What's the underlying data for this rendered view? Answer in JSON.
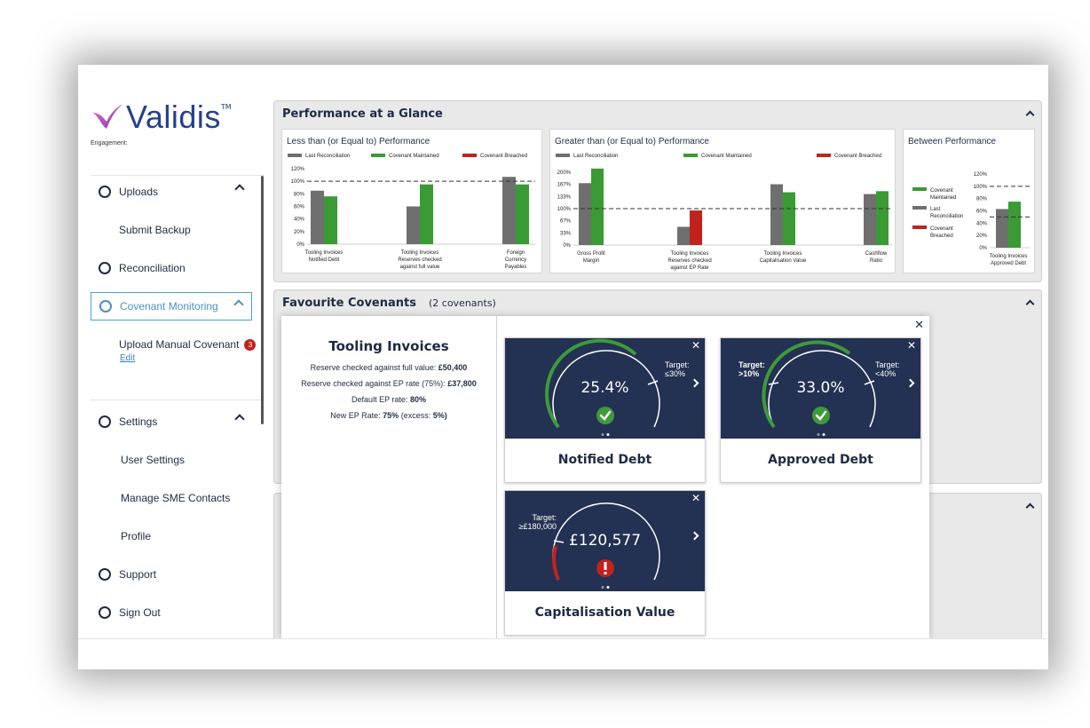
{
  "brand": {
    "name": "Validis",
    "tm": "TM"
  },
  "engagement_label": "Engagement:",
  "sidebar": {
    "uploads": "Uploads",
    "submit_backup": "Submit Backup",
    "reconciliation": "Reconciliation",
    "covenant_monitoring": "Covenant Monitoring",
    "upload_manual_covenant": "Upload Manual Covenant",
    "upload_badge": "3",
    "edit": "Edit",
    "settings": "Settings",
    "user_settings": "User Settings",
    "manage_sme_contacts": "Manage SME Contacts",
    "profile": "Profile",
    "support": "Support",
    "sign_out": "Sign Out"
  },
  "performance_panel": {
    "title": "Performance at a Glance"
  },
  "favourites_panel": {
    "title": "Favourite Covenants",
    "count": "(2 covenants)"
  },
  "colors": {
    "last": "#6f6f6f",
    "maintained": "#3a9a34",
    "breached": "#c0231e",
    "navy": "#233152",
    "ok_green": "#3e9a3a",
    "alert_red": "#c0231e"
  },
  "chart_data": [
    {
      "type": "bar",
      "title": "Less than (or Equal to) Performance",
      "legend": [
        "Last Reconciliation",
        "Covenant Maintained",
        "Covenant Breached"
      ],
      "y_ticks": [
        "120%",
        "100%",
        "80%",
        "60%",
        "40%",
        "20%",
        "0%"
      ],
      "ylim": [
        0,
        120
      ],
      "threshold": 100,
      "categories": [
        [
          "Tooling Invoices",
          "Notified Debt"
        ],
        [
          "Tooling Invoices",
          "Reserves checked",
          "against full value"
        ],
        [
          "Foreign",
          "Currency",
          "Payables"
        ]
      ],
      "series": [
        {
          "name": "Last Reconciliation",
          "values": [
            85,
            60,
            107
          ]
        },
        {
          "name": "Covenant Maintained",
          "values": [
            76,
            95,
            95
          ]
        }
      ]
    },
    {
      "type": "bar",
      "title": "Greater than (or Equal to) Performance",
      "legend": [
        "Last Reconciliation",
        "Covenant Maintained",
        "Covenant Breached"
      ],
      "y_ticks": [
        "200%",
        "167%",
        "133%",
        "100%",
        "67%",
        "33%",
        "0%"
      ],
      "ylim": [
        0,
        200
      ],
      "threshold": 100,
      "categories": [
        [
          "Gross Profit",
          "Margin"
        ],
        [
          "Tooling Invoices",
          "Reserves checked",
          "against EP Rate"
        ],
        [
          "Tooling Invoices",
          "Capitalisation Value"
        ],
        [
          "Cashflow",
          "Ratio"
        ]
      ],
      "series": [
        {
          "name": "Last Reconciliation",
          "values": [
            170,
            50,
            167,
            140
          ]
        },
        {
          "name": "Covenant Maintained / Breached",
          "values": [
            210,
            95,
            145,
            148
          ],
          "colors": [
            "maintained",
            "breached",
            "maintained",
            "maintained"
          ]
        }
      ]
    },
    {
      "type": "bar",
      "title": "Between Performance",
      "legend": [
        "Covenant Maintained",
        "Last Reconciliation",
        "Covenant Breached"
      ],
      "y_ticks": [
        "120%",
        "100%",
        "80%",
        "60%",
        "40%",
        "20%",
        "0%"
      ],
      "ylim": [
        0,
        120
      ],
      "bounds": [
        100,
        50
      ],
      "categories": [
        [
          "Tooling Invoices",
          "Approved Debt"
        ]
      ],
      "series": [
        {
          "name": "Last Reconciliation",
          "values": [
            63
          ]
        },
        {
          "name": "Covenant Maintained",
          "values": [
            75
          ]
        }
      ]
    }
  ],
  "detail": {
    "title": "Tooling Invoices",
    "line1_label": "Reserve checked against full value:",
    "line1_value": "£50,400",
    "line2_label": "Reserve checked against EP rate (75%):",
    "line2_value": "£37,800",
    "line3_label": "Default EP rate:",
    "line3_value": "80%",
    "line4_label": "New EP Rate:",
    "line4_value": "75%",
    "line4_suffix": "(excess:",
    "line4_excess": "5%)"
  },
  "tiles": [
    {
      "name": "Notified Debt",
      "value": "25.4%",
      "target_label": "Target:",
      "target_value": "≤30%",
      "status": "ok"
    },
    {
      "name": "Approved Debt",
      "value": "33.0%",
      "target_low_label": "Target:",
      "target_low_value": ">10%",
      "target_high_label": "Target:",
      "target_high_value": "<40%",
      "status": "ok"
    },
    {
      "name": "Capitalisation Value",
      "value": "£120,577",
      "target_label": "Target:",
      "target_value": "≥£180,000",
      "status": "alert"
    }
  ],
  "close_glyph": "✕"
}
